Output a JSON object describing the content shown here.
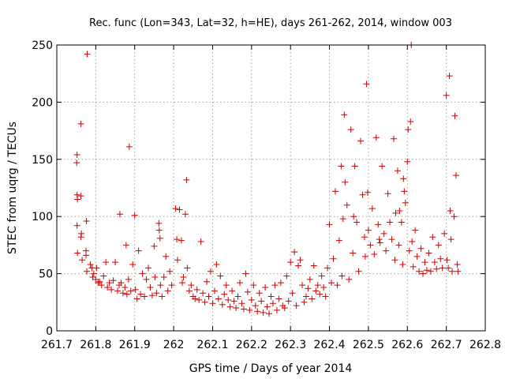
{
  "chart_data": {
    "type": "scatter",
    "title": "Rec. func (Lon=343, Lat=32, h=HE), days 261-262, 2014, window 003",
    "xlabel": "GPS time / Days of year 2014",
    "ylabel": "STEC from uqrg / TECUs",
    "xlim": [
      261.7,
      262.8
    ],
    "ylim": [
      0,
      250
    ],
    "xticks": [
      261.7,
      261.8,
      261.9,
      262,
      262.1,
      262.2,
      262.3,
      262.4,
      262.5,
      262.6,
      262.7,
      262.8
    ],
    "xtick_labels": [
      "261.7",
      "261.8",
      "261.9",
      "262",
      "262.1",
      "262.2",
      "262.3",
      "262.4",
      "262.5",
      "262.6",
      "262.7",
      "262.8"
    ],
    "yticks": [
      0,
      50,
      100,
      150,
      200,
      250
    ],
    "ytick_labels": [
      "0",
      "50",
      "100",
      "150",
      "200",
      "250"
    ],
    "grid": true,
    "marker": "+",
    "color": "#cc0000",
    "series": [
      {
        "points": [
          [
            261.751,
            147
          ],
          [
            261.752,
            154
          ],
          [
            261.752,
            119
          ],
          [
            261.753,
            115
          ],
          [
            261.752,
            92
          ],
          [
            261.753,
            68
          ],
          [
            261.762,
            181
          ],
          [
            261.762,
            118
          ],
          [
            261.763,
            85
          ],
          [
            261.762,
            82
          ],
          [
            261.765,
            62
          ],
          [
            261.778,
            242
          ],
          [
            261.776,
            96
          ],
          [
            261.775,
            70
          ],
          [
            261.775,
            66
          ],
          [
            261.777,
            52
          ],
          [
            261.786,
            58
          ],
          [
            261.79,
            55
          ],
          [
            261.792,
            47
          ],
          [
            261.795,
            50
          ],
          [
            261.8,
            45
          ],
          [
            261.802,
            55
          ],
          [
            261.806,
            42
          ],
          [
            261.81,
            43
          ],
          [
            261.815,
            40
          ],
          [
            261.82,
            48
          ],
          [
            261.826,
            60
          ],
          [
            261.83,
            38
          ],
          [
            261.835,
            42
          ],
          [
            261.84,
            36
          ],
          [
            261.845,
            44
          ],
          [
            261.85,
            60
          ],
          [
            261.856,
            35
          ],
          [
            261.86,
            40
          ],
          [
            261.862,
            102
          ],
          [
            261.865,
            42
          ],
          [
            261.87,
            33
          ],
          [
            261.875,
            38
          ],
          [
            261.878,
            75
          ],
          [
            261.88,
            32
          ],
          [
            261.884,
            45
          ],
          [
            261.886,
            161
          ],
          [
            261.89,
            35
          ],
          [
            261.895,
            58
          ],
          [
            261.9,
            101
          ],
          [
            261.902,
            36
          ],
          [
            261.906,
            28
          ],
          [
            261.91,
            70
          ],
          [
            261.915,
            32
          ],
          [
            261.92,
            50
          ],
          [
            261.925,
            30
          ],
          [
            261.93,
            45
          ],
          [
            261.935,
            55
          ],
          [
            261.94,
            38
          ],
          [
            261.945,
            31
          ],
          [
            261.95,
            74
          ],
          [
            261.952,
            47
          ],
          [
            261.956,
            33
          ],
          [
            261.962,
            94
          ],
          [
            261.963,
            88
          ],
          [
            261.965,
            81
          ],
          [
            261.966,
            40
          ],
          [
            261.97,
            30
          ],
          [
            261.975,
            47
          ],
          [
            261.98,
            65
          ],
          [
            261.985,
            35
          ],
          [
            261.99,
            52
          ],
          [
            261.995,
            40
          ],
          [
            262.005,
            107
          ],
          [
            262.008,
            80
          ],
          [
            262.01,
            62
          ],
          [
            262.015,
            106
          ],
          [
            262.02,
            79
          ],
          [
            262.022,
            42
          ],
          [
            262.025,
            47
          ],
          [
            262.03,
            102
          ],
          [
            262.033,
            132
          ],
          [
            262.035,
            55
          ],
          [
            262.04,
            35
          ],
          [
            262.045,
            40
          ],
          [
            262.05,
            30
          ],
          [
            262.055,
            28
          ],
          [
            262.06,
            36
          ],
          [
            262.065,
            27
          ],
          [
            262.07,
            78
          ],
          [
            262.075,
            33
          ],
          [
            262.08,
            25
          ],
          [
            262.085,
            43
          ],
          [
            262.09,
            30
          ],
          [
            262.095,
            52
          ],
          [
            262.1,
            24
          ],
          [
            262.105,
            35
          ],
          [
            262.11,
            58
          ],
          [
            262.115,
            28
          ],
          [
            262.12,
            48
          ],
          [
            262.125,
            23
          ],
          [
            262.13,
            32
          ],
          [
            262.135,
            40
          ],
          [
            262.14,
            27
          ],
          [
            262.145,
            21
          ],
          [
            262.15,
            35
          ],
          [
            262.155,
            26
          ],
          [
            262.16,
            20
          ],
          [
            262.165,
            30
          ],
          [
            262.17,
            42
          ],
          [
            262.175,
            24
          ],
          [
            262.18,
            19
          ],
          [
            262.185,
            50
          ],
          [
            262.19,
            34
          ],
          [
            262.195,
            18
          ],
          [
            262.2,
            27
          ],
          [
            262.205,
            40
          ],
          [
            262.21,
            22
          ],
          [
            262.215,
            17
          ],
          [
            262.22,
            33
          ],
          [
            262.225,
            26
          ],
          [
            262.23,
            16
          ],
          [
            262.235,
            38
          ],
          [
            262.24,
            21
          ],
          [
            262.245,
            15
          ],
          [
            262.25,
            30
          ],
          [
            262.255,
            24
          ],
          [
            262.26,
            40
          ],
          [
            262.265,
            18
          ],
          [
            262.27,
            28
          ],
          [
            262.275,
            42
          ],
          [
            262.28,
            22
          ],
          [
            262.285,
            20
          ],
          [
            262.29,
            48
          ],
          [
            262.295,
            26
          ],
          [
            262.3,
            60
          ],
          [
            262.305,
            33
          ],
          [
            262.31,
            69
          ],
          [
            262.315,
            22
          ],
          [
            262.32,
            57
          ],
          [
            262.325,
            62
          ],
          [
            262.33,
            40
          ],
          [
            262.335,
            25
          ],
          [
            262.34,
            30
          ],
          [
            262.345,
            37
          ],
          [
            262.35,
            45
          ],
          [
            262.355,
            28
          ],
          [
            262.36,
            57
          ],
          [
            262.365,
            35
          ],
          [
            262.37,
            40
          ],
          [
            262.375,
            32
          ],
          [
            262.38,
            48
          ],
          [
            262.385,
            38
          ],
          [
            262.39,
            30
          ],
          [
            262.395,
            55
          ],
          [
            262.4,
            93
          ],
          [
            262.405,
            42
          ],
          [
            262.41,
            63
          ],
          [
            262.415,
            122
          ],
          [
            262.42,
            40
          ],
          [
            262.425,
            79
          ],
          [
            262.43,
            144
          ],
          [
            262.432,
            48
          ],
          [
            262.435,
            98
          ],
          [
            262.438,
            189
          ],
          [
            262.44,
            130
          ],
          [
            262.445,
            110
          ],
          [
            262.45,
            45
          ],
          [
            262.455,
            176
          ],
          [
            262.46,
            68
          ],
          [
            262.462,
            100
          ],
          [
            262.465,
            144
          ],
          [
            262.47,
            95
          ],
          [
            262.475,
            52
          ],
          [
            262.48,
            166
          ],
          [
            262.485,
            119
          ],
          [
            262.49,
            82
          ],
          [
            262.492,
            65
          ],
          [
            262.495,
            216
          ],
          [
            262.498,
            121
          ],
          [
            262.5,
            88
          ],
          [
            262.505,
            75
          ],
          [
            262.51,
            107
          ],
          [
            262.515,
            67
          ],
          [
            262.52,
            169
          ],
          [
            262.525,
            93
          ],
          [
            262.528,
            80
          ],
          [
            262.53,
            77
          ],
          [
            262.535,
            144
          ],
          [
            262.54,
            85
          ],
          [
            262.545,
            70
          ],
          [
            262.55,
            120
          ],
          [
            262.555,
            95
          ],
          [
            262.56,
            80
          ],
          [
            262.565,
            168
          ],
          [
            262.568,
            62
          ],
          [
            262.57,
            103
          ],
          [
            262.575,
            140
          ],
          [
            262.578,
            75
          ],
          [
            262.58,
            105
          ],
          [
            262.585,
            95
          ],
          [
            262.588,
            58
          ],
          [
            262.59,
            133
          ],
          [
            262.592,
            122
          ],
          [
            262.595,
            112
          ],
          [
            262.6,
            148
          ],
          [
            262.602,
            176
          ],
          [
            262.605,
            70
          ],
          [
            262.608,
            183
          ],
          [
            262.61,
            250
          ],
          [
            262.612,
            78
          ],
          [
            262.615,
            56
          ],
          [
            262.62,
            88
          ],
          [
            262.625,
            65
          ],
          [
            262.63,
            52
          ],
          [
            262.635,
            72
          ],
          [
            262.64,
            50
          ],
          [
            262.645,
            60
          ],
          [
            262.65,
            53
          ],
          [
            262.655,
            68
          ],
          [
            262.66,
            52
          ],
          [
            262.665,
            82
          ],
          [
            262.67,
            60
          ],
          [
            262.675,
            54
          ],
          [
            262.68,
            75
          ],
          [
            262.685,
            63
          ],
          [
            262.69,
            55
          ],
          [
            262.695,
            85
          ],
          [
            262.7,
            206
          ],
          [
            262.702,
            62
          ],
          [
            262.705,
            55
          ],
          [
            262.708,
            223
          ],
          [
            262.71,
            105
          ],
          [
            262.712,
            80
          ],
          [
            262.715,
            52
          ],
          [
            262.72,
            100
          ],
          [
            262.722,
            188
          ],
          [
            262.725,
            136
          ],
          [
            262.728,
            58
          ],
          [
            262.73,
            52
          ]
        ]
      }
    ]
  }
}
